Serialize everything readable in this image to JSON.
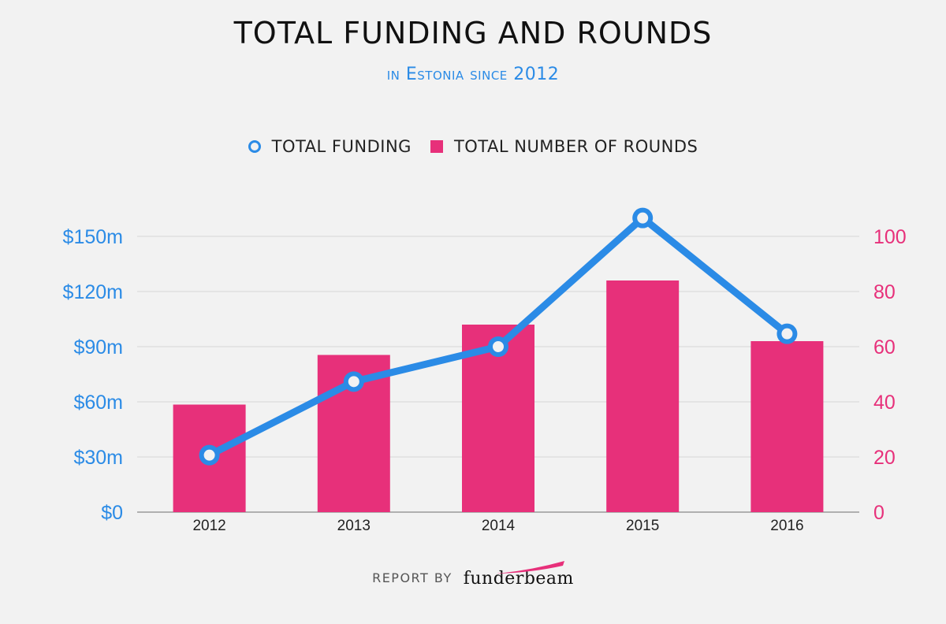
{
  "chart_data": {
    "type": "bar+line",
    "title": "TOTAL FUNDING AND ROUNDS",
    "subtitle": "in Estonia since 2012",
    "categories": [
      "2012",
      "2013",
      "2014",
      "2015",
      "2016"
    ],
    "series": [
      {
        "name": "TOTAL FUNDING",
        "type": "line",
        "axis": "left",
        "values": [
          31,
          71,
          90,
          160,
          97
        ],
        "color": "#2b8be6"
      },
      {
        "name": "TOTAL NUMBER OF ROUNDS",
        "type": "bar",
        "axis": "right",
        "values": [
          39,
          57,
          68,
          84,
          62
        ],
        "color": "#e7307a"
      }
    ],
    "left_axis": {
      "ylim": [
        0,
        150
      ],
      "ticks": [
        0,
        30,
        60,
        90,
        120,
        150
      ],
      "tick_labels": [
        "$0",
        "$30m",
        "$60m",
        "$90m",
        "$120m",
        "$150m"
      ]
    },
    "right_axis": {
      "ylim": [
        0,
        100
      ],
      "ticks": [
        0,
        20,
        40,
        60,
        80,
        100
      ],
      "tick_labels": [
        "0",
        "20",
        "40",
        "60",
        "80",
        "100"
      ]
    },
    "legend": [
      "TOTAL FUNDING",
      "TOTAL NUMBER OF ROUNDS"
    ],
    "legend_position": "top-center",
    "grid": true
  },
  "footer": {
    "label": "REPORT BY",
    "brand": "funderbeam"
  },
  "colors": {
    "line": "#2b8be6",
    "bar": "#e7307a",
    "left_axis_text": "#2b8be6",
    "right_axis_text": "#e7307a",
    "grid": "#d6d6d6"
  }
}
